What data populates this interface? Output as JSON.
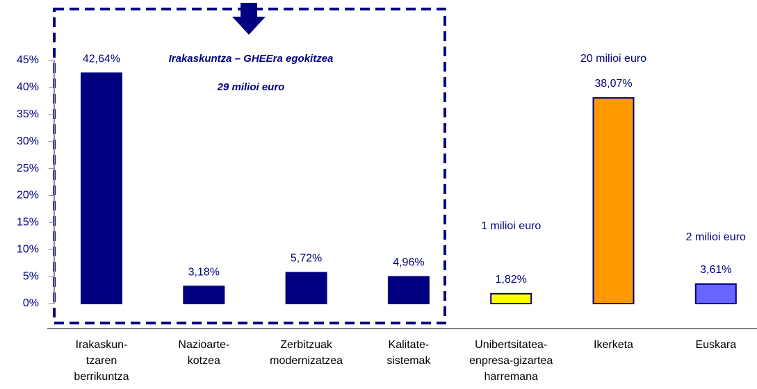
{
  "chart_data": {
    "type": "bar",
    "categories": [
      "Irakaskun-\ntzaren\nberrikuntza",
      "Nazioarte-\nkotzea",
      "Zerbitzuak\nmodernizatzea",
      "Kalitate-\nsistemak",
      "Unibertsitatea-\nenpresa-gizartea\nharremana",
      "Ikerketa",
      "Euskara"
    ],
    "values": [
      42.64,
      3.18,
      5.72,
      4.96,
      1.82,
      38.07,
      3.61
    ],
    "value_labels": [
      "42,64%",
      "3,18%",
      "5,72%",
      "4,96%",
      "1,82%",
      "38,07%",
      "3,61%"
    ],
    "colors": [
      "#000080",
      "#000080",
      "#000080",
      "#000080",
      "#ffff00",
      "#ff9900",
      "#6666ff"
    ],
    "ylim": [
      0,
      45
    ],
    "yticks": [
      {
        "value": 0,
        "label": "0%"
      },
      {
        "value": 5,
        "label": "5%"
      },
      {
        "value": 10,
        "label": "10%"
      },
      {
        "value": 15,
        "label": "15%"
      },
      {
        "value": 20,
        "label": "20%"
      },
      {
        "value": 25,
        "label": "25%"
      },
      {
        "value": 30,
        "label": "30%"
      },
      {
        "value": 35,
        "label": "35%"
      },
      {
        "value": 40,
        "label": "40%"
      },
      {
        "value": 45,
        "label": "45%"
      }
    ],
    "annotations": [
      "Irakaskuntza – GHEEra egokitzea",
      "29 milioi euro",
      "1 milioi euro",
      "20 milioi euro",
      "2 milioi euro"
    ]
  }
}
